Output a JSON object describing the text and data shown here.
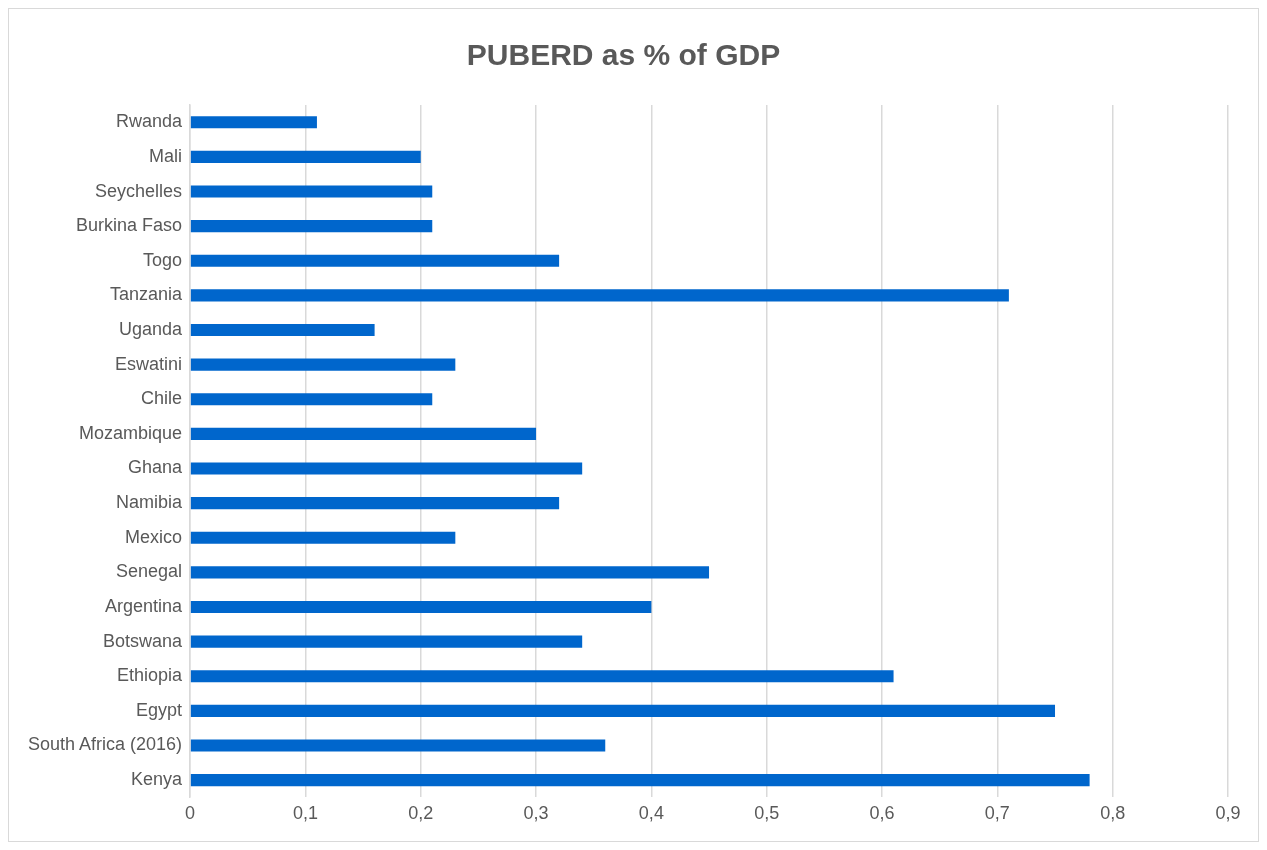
{
  "chart_data": {
    "type": "bar",
    "orientation": "horizontal",
    "title": "PUBERD as % of GDP",
    "categories": [
      "Rwanda",
      "Mali",
      "Seychelles",
      "Burkina Faso",
      "Togo",
      "Tanzania",
      "Uganda",
      "Eswatini",
      "Chile",
      "Mozambique",
      "Ghana",
      "Namibia",
      "Mexico",
      "Senegal",
      "Argentina",
      "Botswana",
      "Ethiopia",
      "Egypt",
      "South Africa (2016)",
      "Kenya"
    ],
    "values": [
      0.11,
      0.2,
      0.21,
      0.21,
      0.32,
      0.71,
      0.16,
      0.23,
      0.21,
      0.3,
      0.34,
      0.32,
      0.23,
      0.45,
      0.4,
      0.34,
      0.61,
      0.75,
      0.36,
      0.78
    ],
    "color": "#0066cc",
    "xlim": [
      0,
      0.9
    ],
    "xticks": [
      0,
      {
        "value": 0.1,
        "label": "0,1"
      },
      {
        "value": 0.2,
        "label": "0,2"
      },
      {
        "value": 0.3,
        "label": "0,3"
      },
      {
        "value": 0.4,
        "label": "0,4"
      },
      {
        "value": 0.5,
        "label": "0,5"
      },
      {
        "value": 0.6,
        "label": "0,6"
      },
      {
        "value": 0.7,
        "label": "0,7"
      },
      {
        "value": 0.8,
        "label": "0,8"
      },
      {
        "value": 0.9,
        "label": "0,9"
      }
    ],
    "grid": "x",
    "legend": false
  }
}
